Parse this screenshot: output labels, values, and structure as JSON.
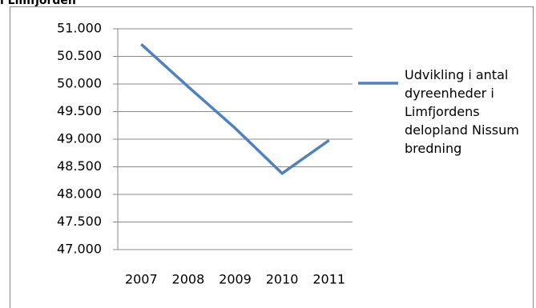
{
  "heading": "i Limfjorden",
  "chart_data": {
    "type": "line",
    "categories": [
      "2007",
      "2008",
      "2009",
      "2010",
      "2011"
    ],
    "series": [
      {
        "name": "Udvikling i antal dyreenheder i Limfjordens delopland Nissum bredning",
        "color": "#4f81bd",
        "values": [
          50720,
          49950,
          49200,
          48380,
          48980
        ]
      }
    ],
    "ylim": [
      47000,
      51000
    ],
    "yticks": [
      {
        "value": 47000,
        "label": "47.000"
      },
      {
        "value": 47500,
        "label": "47.500"
      },
      {
        "value": 48000,
        "label": "48.000"
      },
      {
        "value": 48500,
        "label": "48.500"
      },
      {
        "value": 49000,
        "label": "49.000"
      },
      {
        "value": 49500,
        "label": "49.500"
      },
      {
        "value": 50000,
        "label": "50.000"
      },
      {
        "value": 50500,
        "label": "50.500"
      },
      {
        "value": 51000,
        "label": "51.000"
      }
    ],
    "grid": true,
    "legend": "right"
  }
}
